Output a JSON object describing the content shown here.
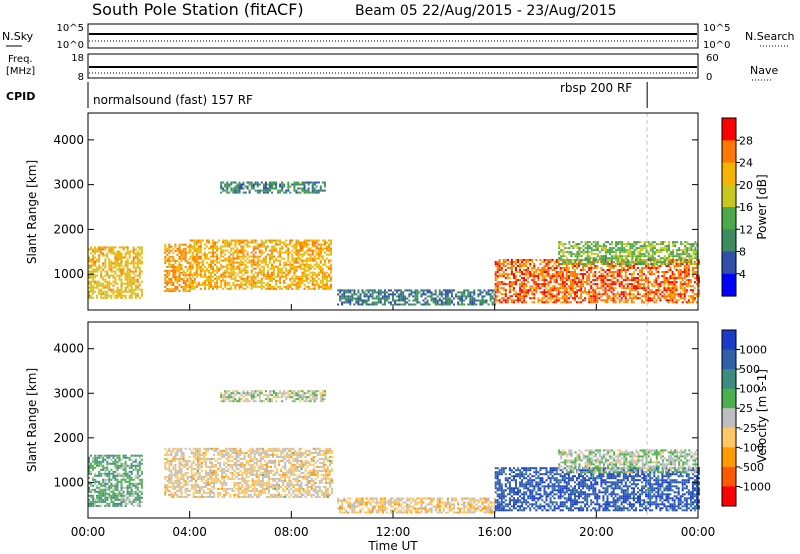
{
  "header": {
    "title": "South Pole Station (fitACF)",
    "beam_info": "Beam 05 22/Aug/2015 - 23/Aug/2015"
  },
  "strip_nsky": {
    "left_label": "N.Sky",
    "left_ticks": [
      "10^5",
      "10^0"
    ],
    "right_ticks": [
      "10^5",
      "10^0"
    ],
    "right_label": "N.Search"
  },
  "strip_freq": {
    "left_label_line1": "Freq.",
    "left_label_line2": "[MHz]",
    "left_ticks": [
      "18",
      "8"
    ],
    "right_ticks": [
      "60",
      "0"
    ],
    "right_label": "Nave"
  },
  "strip_cpid": {
    "label": "CPID",
    "mode1": "normalsound (fast) 157 RF",
    "mode2": "rbsp 200 RF",
    "mode_change_hour": 22
  },
  "colors": {
    "power": [
      "#0000ff",
      "#2f4fa8",
      "#3c8c60",
      "#4ba94b",
      "#c8c81e",
      "#f5b400",
      "#ff7800",
      "#ff0000"
    ],
    "velocity": [
      "#ff0000",
      "#ff5a00",
      "#ff9a00",
      "#ffc864",
      "#bebebe",
      "#4caf50",
      "#3c8c80",
      "#2f5fa8",
      "#1a3cc8"
    ]
  },
  "chart_data": [
    {
      "type": "heatmap",
      "name": "power-panel",
      "ylabel": "Slant Range [km]",
      "yticks": [
        "1000",
        "2000",
        "3000",
        "4000"
      ],
      "ylim": [
        200,
        4600
      ],
      "xlim": [
        0,
        24
      ],
      "colorbar_label": "Power [dB]",
      "colorbar_ticks": [
        "4",
        "8",
        "12",
        "16",
        "20",
        "24",
        "28"
      ],
      "colorbar_range": [
        0,
        30
      ],
      "regions": [
        {
          "t0": 0.0,
          "t1": 2.1,
          "r0": 450,
          "r1": 1600,
          "v": 20
        },
        {
          "t0": 3.0,
          "t1": 4.0,
          "r0": 600,
          "r1": 1650,
          "v": 22
        },
        {
          "t0": 4.0,
          "t1": 9.6,
          "r0": 650,
          "r1": 1750,
          "v": 21
        },
        {
          "t0": 5.2,
          "t1": 9.3,
          "r0": 2800,
          "r1": 3050,
          "v": 9
        },
        {
          "t0": 9.8,
          "t1": 16.0,
          "r0": 300,
          "r1": 650,
          "v": 8
        },
        {
          "t0": 16.0,
          "t1": 24.0,
          "r0": 350,
          "r1": 1300,
          "v": 25
        },
        {
          "t0": 18.5,
          "t1": 24.0,
          "r0": 1200,
          "r1": 1700,
          "v": 14
        }
      ]
    },
    {
      "type": "heatmap",
      "name": "velocity-panel",
      "ylabel": "Slant Range [km]",
      "yticks": [
        "1000",
        "2000",
        "3000",
        "4000"
      ],
      "ylim": [
        200,
        4600
      ],
      "xlim": [
        0,
        24
      ],
      "xticks": [
        "00:00",
        "04:00",
        "08:00",
        "12:00",
        "16:00",
        "20:00",
        "00:00"
      ],
      "xlabel": "Time UT",
      "colorbar_label": "Velocity [m s-1]",
      "colorbar_ticks": [
        "1000",
        "500",
        "100",
        "25",
        "-25",
        "-100",
        "-500",
        "-1000"
      ],
      "colorbar_range": [
        -1200,
        1200
      ],
      "regions": [
        {
          "t0": 0.0,
          "t1": 2.1,
          "r0": 450,
          "r1": 1600,
          "v": 300
        },
        {
          "t0": 3.0,
          "t1": 9.6,
          "r0": 650,
          "r1": 1750,
          "v": -150
        },
        {
          "t0": 5.2,
          "t1": 9.3,
          "r0": 2800,
          "r1": 3050,
          "v": 0
        },
        {
          "t0": 9.8,
          "t1": 16.0,
          "r0": 300,
          "r1": 650,
          "v": -200
        },
        {
          "t0": 16.0,
          "t1": 24.0,
          "r0": 350,
          "r1": 1300,
          "v": 900
        },
        {
          "t0": 18.5,
          "t1": 24.0,
          "r0": 1200,
          "r1": 1700,
          "v": 100
        }
      ]
    }
  ]
}
